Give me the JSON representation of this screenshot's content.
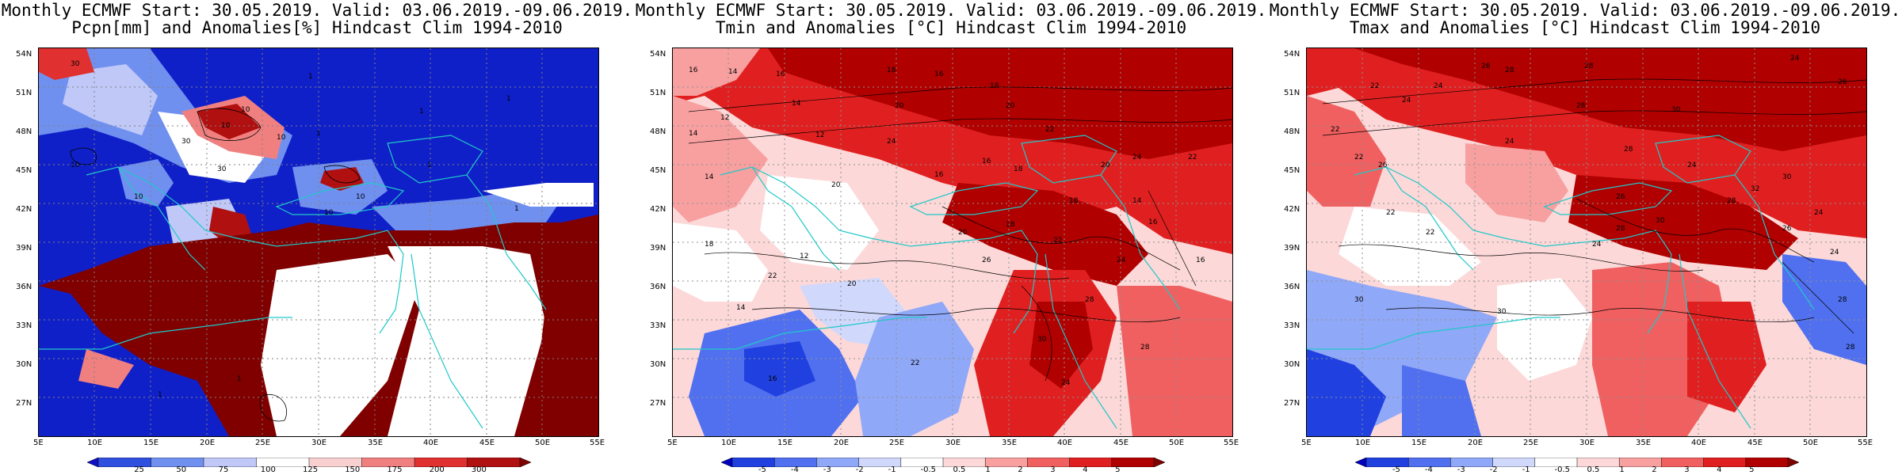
{
  "panels": [
    {
      "title_line1": "Monthly ECMWF Start: 30.05.2019. Valid: 03.06.2019.-09.06.2019.",
      "title_line2": "Pcpn[mm] and Anomalies[%] Hindcast Clim 1994-2010",
      "palette": [
        "#1010c8",
        "#3050e0",
        "#7090f0",
        "#c0c8f8",
        "#ffffff",
        "#f8d0d0",
        "#f08080",
        "#e03030",
        "#b01010",
        "#800000"
      ],
      "colorbar_labels": [
        "25",
        "50",
        "75",
        "100",
        "125",
        "150",
        "175",
        "200",
        "300"
      ],
      "contour_labels": [
        "30",
        "10",
        "1",
        "10",
        "10",
        "10",
        "1",
        "30",
        "30",
        "10",
        "10",
        "1",
        "1",
        "10",
        "1",
        "1",
        "1",
        "1"
      ]
    },
    {
      "title_line1": "Monthly ECMWF Start: 30.05.2019. Valid: 03.06.2019.-09.06.2019.",
      "title_line2": "Tmin and Anomalies [°C] Hindcast Clim 1994-2010",
      "palette": [
        "#0000c0",
        "#2040e0",
        "#5070f0",
        "#90a8f8",
        "#d0d8fc",
        "#ffffff",
        "#fcd8d8",
        "#f8a0a0",
        "#f06060",
        "#e02020",
        "#b00000",
        "#800000"
      ],
      "colorbar_labels": [
        "-5",
        "-4",
        "-3",
        "-2",
        "-1",
        "-0.5",
        "0.5",
        "1",
        "2",
        "3",
        "4",
        "5"
      ],
      "contour_labels": [
        "14",
        "16",
        "18",
        "16",
        "16",
        "18",
        "20",
        "20",
        "14",
        "12",
        "14",
        "12",
        "24",
        "22",
        "24",
        "20",
        "16",
        "14",
        "16",
        "18",
        "20",
        "22",
        "18",
        "14",
        "16",
        "18",
        "20",
        "22",
        "24",
        "26",
        "28",
        "30",
        "28",
        "24",
        "22",
        "20",
        "18",
        "16",
        "14",
        "12",
        "16",
        "22"
      ]
    },
    {
      "title_line1": "Monthly ECMWF Start: 30.05.2019. Valid: 03.06.2019.-09.06.2019.",
      "title_line2": "Tmax and Anomalies [°C] Hindcast Clim 1994-2010",
      "palette": [
        "#0000c0",
        "#2040e0",
        "#5070f0",
        "#90a8f8",
        "#d0d8fc",
        "#ffffff",
        "#fcd8d8",
        "#f8a0a0",
        "#f06060",
        "#e02020",
        "#b00000",
        "#800000"
      ],
      "colorbar_labels": [
        "-5",
        "-4",
        "-3",
        "-2",
        "-1",
        "-0.5",
        "0.5",
        "1",
        "2",
        "3",
        "4",
        "5"
      ],
      "contour_labels": [
        "26",
        "28",
        "28",
        "24",
        "22",
        "24",
        "26",
        "24",
        "28",
        "30",
        "22",
        "24",
        "28",
        "26",
        "24",
        "22",
        "30",
        "26",
        "24",
        "28",
        "22",
        "30",
        "32",
        "26",
        "28",
        "22",
        "30",
        "24",
        "30",
        "28",
        "24",
        "28"
      ]
    }
  ],
  "axes": {
    "lat_labels": [
      "54N",
      "51N",
      "48N",
      "45N",
      "42N",
      "39N",
      "36N",
      "33N",
      "30N",
      "27N"
    ],
    "lon_labels": [
      "5E",
      "10E",
      "15E",
      "20E",
      "25E",
      "30E",
      "35E",
      "40E",
      "45E",
      "50E",
      "55E"
    ]
  }
}
